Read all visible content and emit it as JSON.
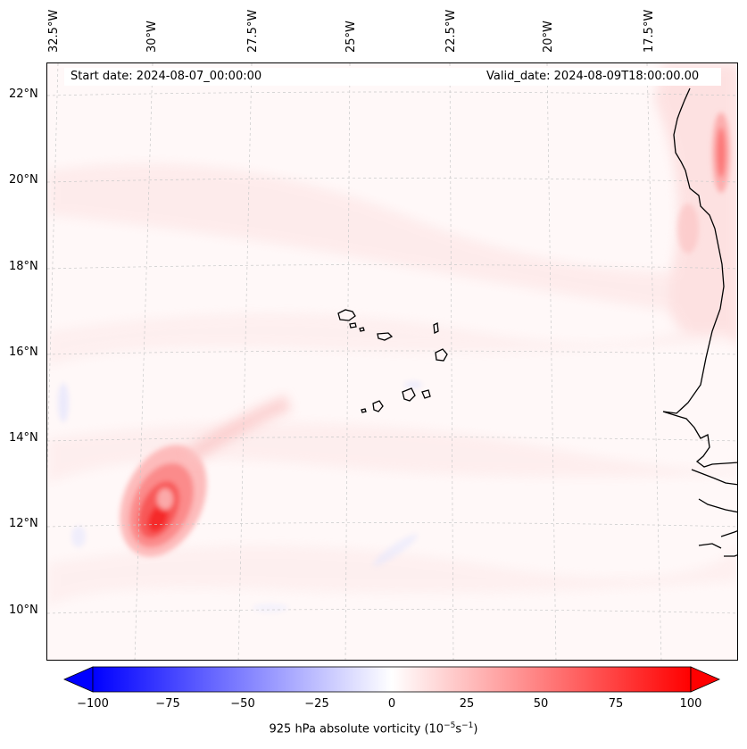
{
  "start_date": "Start date: 2024-08-07_00:00:00",
  "valid_date": "Valid_date: 2024-08-09T18:00:00.00",
  "longitude_labels": [
    "32.5°W",
    "30°W",
    "27.5°W",
    "25°W",
    "22.5°W",
    "20°W",
    "17.5°W"
  ],
  "latitude_labels": [
    "22°N",
    "20°N",
    "18°N",
    "16°N",
    "14°N",
    "12°N",
    "10°N"
  ],
  "colorbar": {
    "label": "925 hPa absolute vorticity (10",
    "label_exp1": "−5",
    "label_mid": "s",
    "label_exp2": "−1",
    "label_close": ")",
    "ticks": [
      "−100",
      "−75",
      "−50",
      "−25",
      "0",
      "25",
      "50",
      "75",
      "100"
    ],
    "min": -100,
    "max": 100,
    "colors": {
      "low": "#0000ff",
      "mid": "#ffffff",
      "high": "#ff0000"
    }
  },
  "features": {
    "vortex_center": {
      "lat": 12.3,
      "lon": -29.6
    }
  }
}
